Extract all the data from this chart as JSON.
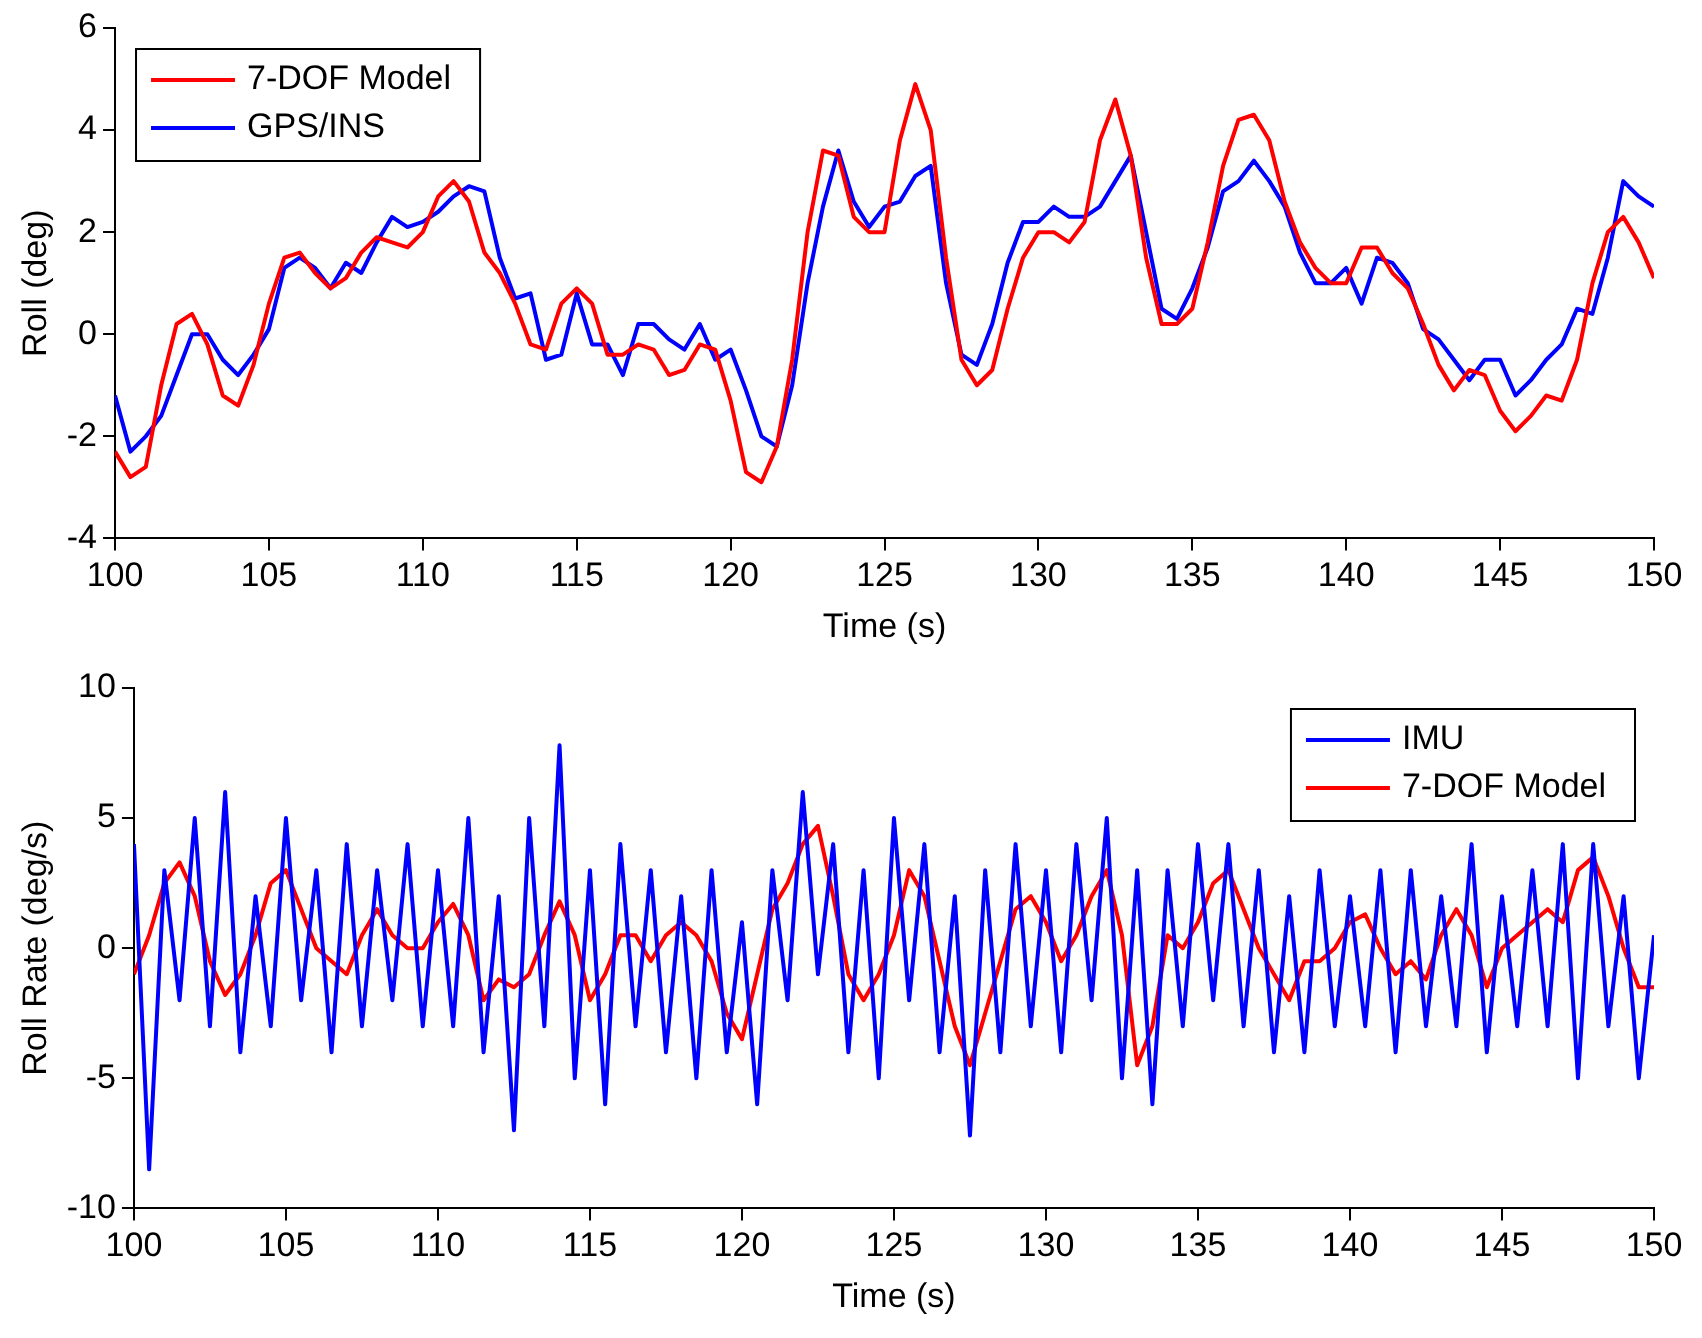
{
  "chart_data": [
    {
      "type": "line",
      "xlabel": "Time (s)",
      "ylabel": "Roll (deg)",
      "xlim": [
        100,
        150
      ],
      "ylim": [
        -4,
        6
      ],
      "xticks": [
        100,
        105,
        110,
        115,
        120,
        125,
        130,
        135,
        140,
        145,
        150
      ],
      "yticks": [
        -4,
        -2,
        0,
        2,
        4,
        6
      ],
      "grid": false,
      "legend": "top left",
      "x": [
        100,
        100.5,
        101,
        101.5,
        102,
        102.5,
        103,
        103.5,
        104,
        104.5,
        105,
        105.5,
        106,
        106.5,
        107,
        107.5,
        108,
        108.5,
        109,
        109.5,
        110,
        110.5,
        111,
        111.5,
        112,
        112.5,
        113,
        113.5,
        114,
        114.5,
        115,
        115.5,
        116,
        116.5,
        117,
        117.5,
        118,
        118.5,
        119,
        119.5,
        120,
        120.5,
        121,
        121.5,
        122,
        122.5,
        123,
        123.5,
        124,
        124.5,
        125,
        125.5,
        126,
        126.5,
        127,
        127.5,
        128,
        128.5,
        129,
        129.5,
        130,
        130.5,
        131,
        131.5,
        132,
        132.5,
        133,
        133.5,
        134,
        134.5,
        135,
        135.5,
        136,
        136.5,
        137,
        137.5,
        138,
        138.5,
        139,
        139.5,
        140,
        140.5,
        141,
        141.5,
        142,
        142.5,
        143,
        143.5,
        144,
        144.5,
        145,
        145.5,
        146,
        146.5,
        147,
        147.5,
        148,
        148.5,
        149,
        149.5,
        150
      ],
      "series": [
        {
          "name": "7-DOF Model",
          "color": "#ff0000",
          "values": [
            -2.3,
            -2.8,
            -2.6,
            -1.0,
            0.2,
            0.4,
            -0.2,
            -1.2,
            -1.4,
            -0.6,
            0.6,
            1.5,
            1.6,
            1.2,
            0.9,
            1.1,
            1.6,
            1.9,
            1.8,
            1.7,
            2.0,
            2.7,
            3.0,
            2.6,
            1.6,
            1.2,
            0.6,
            -0.2,
            -0.3,
            0.6,
            0.9,
            0.6,
            -0.4,
            -0.4,
            -0.2,
            -0.3,
            -0.8,
            -0.7,
            -0.2,
            -0.3,
            -1.3,
            -2.7,
            -2.9,
            -2.2,
            -0.5,
            2.0,
            3.6,
            3.5,
            2.3,
            2.0,
            2.0,
            3.8,
            4.9,
            4.0,
            1.5,
            -0.5,
            -1.0,
            -0.7,
            0.5,
            1.5,
            2.0,
            2.0,
            1.8,
            2.2,
            3.8,
            4.6,
            3.5,
            1.5,
            0.2,
            0.2,
            0.5,
            1.8,
            3.3,
            4.2,
            4.3,
            3.8,
            2.6,
            1.8,
            1.3,
            1.0,
            1.0,
            1.7,
            1.7,
            1.2,
            0.9,
            0.2,
            -0.6,
            -1.1,
            -0.7,
            -0.8,
            -1.5,
            -1.9,
            -1.6,
            -1.2,
            -1.3,
            -0.5,
            1.0,
            2.0,
            2.3,
            1.8,
            1.1
          ]
        },
        {
          "name": "GPS/INS",
          "color": "#0000ff",
          "values": [
            -1.2,
            -2.3,
            -2.0,
            -1.6,
            -0.8,
            0.0,
            0.0,
            -0.5,
            -0.8,
            -0.4,
            0.1,
            1.3,
            1.5,
            1.3,
            0.9,
            1.4,
            1.2,
            1.8,
            2.3,
            2.1,
            2.2,
            2.4,
            2.7,
            2.9,
            2.8,
            1.5,
            0.7,
            0.8,
            -0.5,
            -0.4,
            0.8,
            -0.2,
            -0.2,
            -0.8,
            0.2,
            0.2,
            -0.1,
            -0.3,
            0.2,
            -0.5,
            -0.3,
            -1.1,
            -2.0,
            -2.2,
            -1.0,
            1.0,
            2.5,
            3.6,
            2.6,
            2.1,
            2.5,
            2.6,
            3.1,
            3.3,
            1.0,
            -0.4,
            -0.6,
            0.2,
            1.4,
            2.2,
            2.2,
            2.5,
            2.3,
            2.3,
            2.5,
            3.0,
            3.5,
            2.0,
            0.5,
            0.3,
            0.9,
            1.7,
            2.8,
            3.0,
            3.4,
            3.0,
            2.5,
            1.6,
            1.0,
            1.0,
            1.3,
            0.6,
            1.5,
            1.4,
            1.0,
            0.1,
            -0.1,
            -0.5,
            -0.9,
            -0.5,
            -0.5,
            -1.2,
            -0.9,
            -0.5,
            -0.2,
            0.5,
            0.4,
            1.5,
            3.0,
            2.7,
            2.5
          ]
        }
      ]
    },
    {
      "type": "line",
      "xlabel": "Time (s)",
      "ylabel": "Roll Rate (deg/s)",
      "xlim": [
        100,
        150
      ],
      "ylim": [
        -10,
        10
      ],
      "xticks": [
        100,
        105,
        110,
        115,
        120,
        125,
        130,
        135,
        140,
        145,
        150
      ],
      "yticks": [
        -10,
        -5,
        0,
        5,
        10
      ],
      "grid": false,
      "legend": "top right",
      "x": [
        100,
        100.5,
        101,
        101.5,
        102,
        102.5,
        103,
        103.5,
        104,
        104.5,
        105,
        105.5,
        106,
        106.5,
        107,
        107.5,
        108,
        108.5,
        109,
        109.5,
        110,
        110.5,
        111,
        111.5,
        112,
        112.5,
        113,
        113.5,
        114,
        114.5,
        115,
        115.5,
        116,
        116.5,
        117,
        117.5,
        118,
        118.5,
        119,
        119.5,
        120,
        120.5,
        121,
        121.5,
        122,
        122.5,
        123,
        123.5,
        124,
        124.5,
        125,
        125.5,
        126,
        126.5,
        127,
        127.5,
        128,
        128.5,
        129,
        129.5,
        130,
        130.5,
        131,
        131.5,
        132,
        132.5,
        133,
        133.5,
        134,
        134.5,
        135,
        135.5,
        136,
        136.5,
        137,
        137.5,
        138,
        138.5,
        139,
        139.5,
        140,
        140.5,
        141,
        141.5,
        142,
        142.5,
        143,
        143.5,
        144,
        144.5,
        145,
        145.5,
        146,
        146.5,
        147,
        147.5,
        148,
        148.5,
        149,
        149.5,
        150
      ],
      "series": [
        {
          "name": "IMU",
          "color": "#0000ff",
          "values": [
            4,
            -8.5,
            3,
            -2,
            5,
            -3,
            6,
            -4,
            2,
            -3,
            5,
            -2,
            3,
            -4,
            4,
            -3,
            3,
            -2,
            4,
            -3,
            3,
            -3,
            5,
            -4,
            2,
            -7,
            5,
            -3,
            7.8,
            -5,
            3,
            -6,
            4,
            -3,
            3,
            -4,
            2,
            -5,
            3,
            -4,
            1,
            -6,
            3,
            -2,
            6,
            -1,
            4,
            -4,
            3,
            -5,
            5,
            -2,
            4,
            -4,
            2,
            -7.2,
            3,
            -4,
            4,
            -3,
            3,
            -4,
            4,
            -2,
            5,
            -5,
            3,
            -6,
            3,
            -3,
            4,
            -2,
            4,
            -3,
            3,
            -4,
            2,
            -4,
            3,
            -3,
            2,
            -3,
            3,
            -4,
            3,
            -3,
            2,
            -3,
            4,
            -4,
            2,
            -3,
            3,
            -3,
            4,
            -5,
            4,
            -3,
            2,
            -5,
            0.5
          ]
        },
        {
          "name": "7-DOF Model",
          "color": "#ff0000",
          "values": [
            -1,
            0.5,
            2.5,
            3.3,
            2.0,
            -0.5,
            -1.8,
            -1.0,
            0.5,
            2.5,
            3.0,
            1.5,
            0,
            -0.5,
            -1.0,
            0.5,
            1.5,
            0.5,
            0,
            0,
            1.0,
            1.7,
            0.5,
            -2.0,
            -1.2,
            -1.5,
            -1.0,
            0.5,
            1.8,
            0.5,
            -2.0,
            -1.0,
            0.5,
            0.5,
            -0.5,
            0.5,
            1.0,
            0.5,
            -0.5,
            -2.5,
            -3.5,
            -1.0,
            1.5,
            2.5,
            4.0,
            4.7,
            2.0,
            -1.0,
            -2.0,
            -1.0,
            0.5,
            3.0,
            2.0,
            -0.5,
            -3.0,
            -4.5,
            -2.5,
            -0.5,
            1.5,
            2.0,
            1.0,
            -0.5,
            0.5,
            2.0,
            3.0,
            0.5,
            -4.5,
            -3.0,
            0.5,
            0.0,
            1.0,
            2.5,
            3.0,
            1.5,
            0,
            -1.0,
            -2.0,
            -0.5,
            -0.5,
            0,
            1.0,
            1.3,
            0,
            -1.0,
            -0.5,
            -1.2,
            0.5,
            1.5,
            0.5,
            -1.5,
            0,
            0.5,
            1.0,
            1.5,
            1.0,
            3.0,
            3.5,
            2.0,
            0,
            -1.5,
            -1.5
          ]
        }
      ]
    }
  ]
}
